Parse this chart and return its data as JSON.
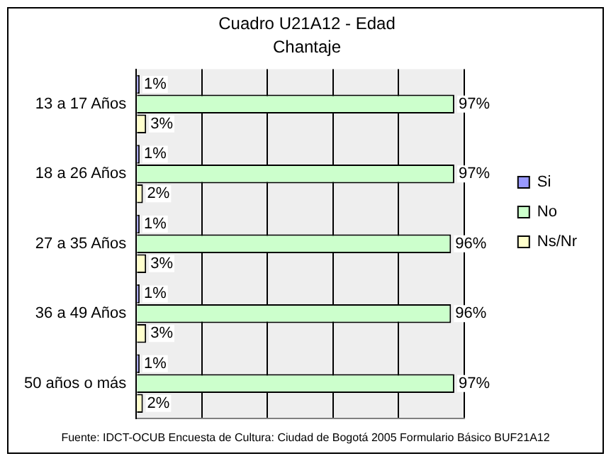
{
  "chart_data": {
    "type": "bar",
    "orientation": "horizontal",
    "title": "Cuadro U21A12 - Edad",
    "subtitle": "Chantaje",
    "categories": [
      "13 a 17 Años",
      "18 a 26 Años",
      "27 a 35 Años",
      "36 a 49 Años",
      "50 años o más"
    ],
    "series": [
      {
        "name": "Si",
        "color": "#9999ff",
        "values": [
          1,
          1,
          1,
          1,
          1
        ],
        "value_labels": [
          "1%",
          "1%",
          "1%",
          "1%",
          "1%"
        ]
      },
      {
        "name": "No",
        "color": "#ccffcc",
        "values": [
          97,
          97,
          96,
          96,
          97
        ],
        "value_labels": [
          "97%",
          "97%",
          "96%",
          "96%",
          "97%"
        ]
      },
      {
        "name": "Ns/Nr",
        "color": "#ffffcc",
        "values": [
          3,
          2,
          3,
          3,
          2
        ],
        "value_labels": [
          "3%",
          "2%",
          "3%",
          "3%",
          "2%"
        ]
      }
    ],
    "xlim": [
      0,
      100
    ],
    "xticks": [
      {
        "value": 0,
        "label": null
      },
      {
        "value": 20,
        "label": null
      },
      {
        "value": 40,
        "label": null
      },
      {
        "value": 60,
        "label": null
      },
      {
        "value": 80,
        "label": null
      },
      {
        "value": 100,
        "label": null
      }
    ],
    "tick_labels": "y",
    "grid": "x",
    "legend": "right",
    "annotations": [
      "Fuente: IDCT-OCUB Encuesta de Cultura: Ciudad de Bogotá 2005 Formulario Básico BUF21A12"
    ]
  }
}
